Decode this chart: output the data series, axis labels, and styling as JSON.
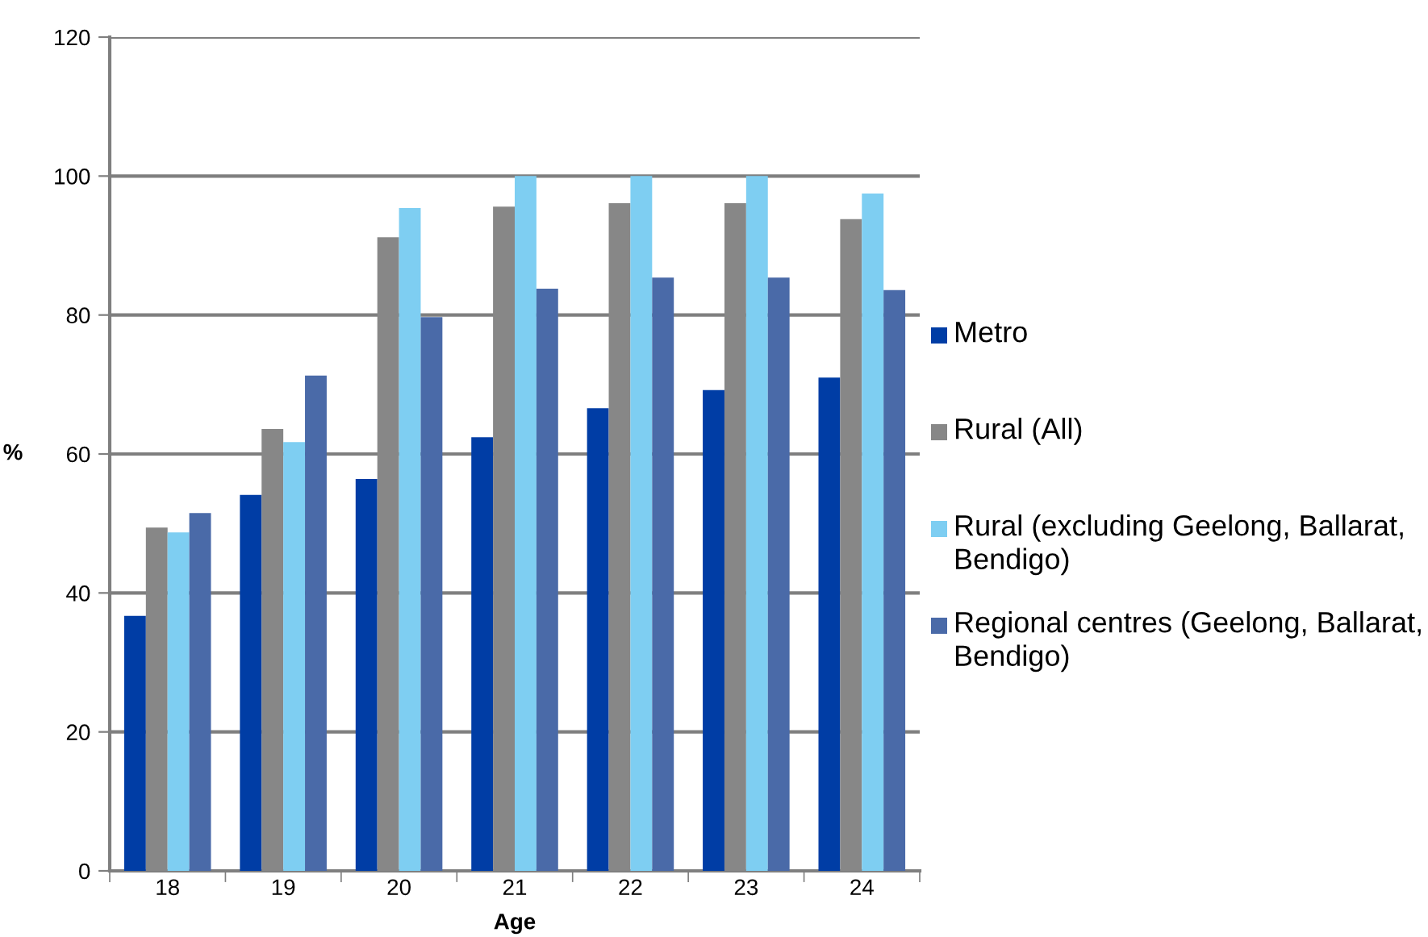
{
  "chart_data": {
    "type": "bar",
    "xlabel": "Age",
    "ylabel": "%",
    "categories": [
      "18",
      "19",
      "20",
      "21",
      "22",
      "23",
      "24"
    ],
    "series": [
      {
        "name": "Metro",
        "color": "#003da5",
        "values": [
          36.7,
          54.1,
          56.4,
          62.4,
          66.6,
          69.2,
          71.0
        ]
      },
      {
        "name": "Rural (All)",
        "color": "#878787",
        "values": [
          49.4,
          63.6,
          91.2,
          95.6,
          96.1,
          96.1,
          93.8
        ]
      },
      {
        "name": "Rural (excluding Geelong, Ballarat, Bendigo)",
        "color": "#7ecef2",
        "values": [
          48.7,
          61.7,
          95.4,
          100,
          100,
          100,
          97.5
        ]
      },
      {
        "name": "Regional centres (Geelong, Ballarat, Bendigo)",
        "color": "#4a6aa8",
        "values": [
          51.5,
          71.3,
          79.7,
          83.8,
          85.4,
          85.4,
          83.6
        ]
      }
    ],
    "ylim": [
      0,
      120
    ],
    "yticks": [
      0,
      20,
      40,
      60,
      80,
      100,
      120
    ],
    "grid": "y",
    "legend": "right"
  }
}
